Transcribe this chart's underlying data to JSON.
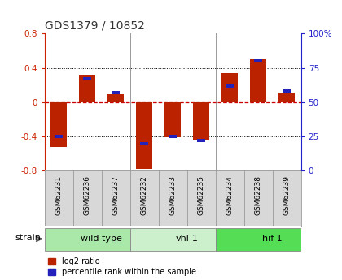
{
  "title": "GDS1379 / 10852",
  "samples": [
    "GSM62231",
    "GSM62236",
    "GSM62237",
    "GSM62232",
    "GSM62233",
    "GSM62235",
    "GSM62234",
    "GSM62238",
    "GSM62239"
  ],
  "log2_ratio": [
    -0.52,
    0.32,
    0.09,
    -0.78,
    -0.41,
    -0.45,
    0.34,
    0.5,
    0.11
  ],
  "percentile_rank": [
    25,
    67,
    57,
    20,
    25,
    22,
    62,
    80,
    58
  ],
  "groups": [
    {
      "label": "wild type",
      "start": 0,
      "end": 3,
      "color": "#aae8aa"
    },
    {
      "label": "vhl-1",
      "start": 3,
      "end": 6,
      "color": "#ccf0cc"
    },
    {
      "label": "hif-1",
      "start": 6,
      "end": 9,
      "color": "#55dd55"
    }
  ],
  "ylim": [
    -0.8,
    0.8
  ],
  "right_ylim": [
    0,
    100
  ],
  "bar_color_red": "#bb2200",
  "bar_color_blue": "#2222bb",
  "bg_color": "#d8d8d8",
  "plot_bg": "#ffffff",
  "left_axis_color": "#cc2200",
  "right_axis_color": "#2222cc",
  "hline_color": "#cc0000",
  "dotted_color": "#000000",
  "bar_width": 0.55,
  "blue_bar_height": 0.04,
  "blue_bar_width": 0.3
}
